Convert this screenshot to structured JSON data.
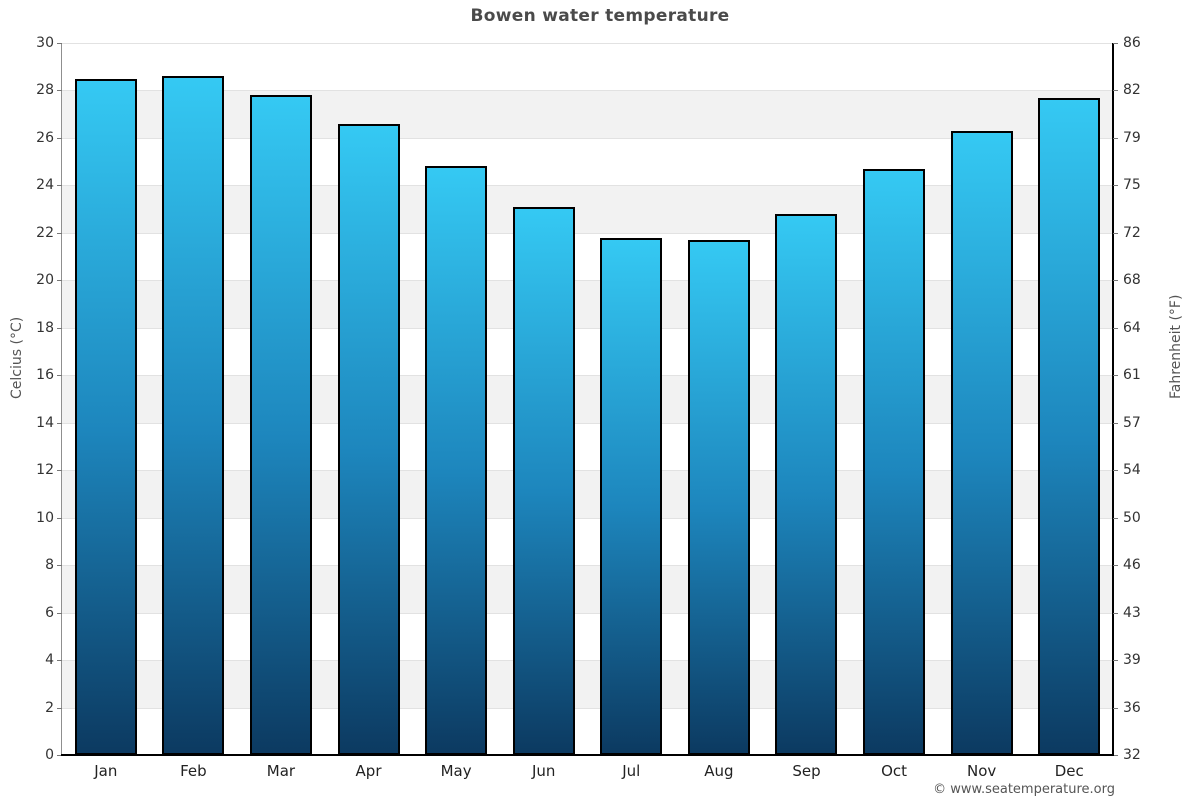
{
  "chart_data": {
    "type": "bar",
    "title": "Bowen water temperature",
    "categories": [
      "Jan",
      "Feb",
      "Mar",
      "Apr",
      "May",
      "Jun",
      "Jul",
      "Aug",
      "Sep",
      "Oct",
      "Nov",
      "Dec"
    ],
    "values": [
      28.5,
      28.6,
      27.8,
      26.6,
      24.8,
      23.1,
      21.8,
      21.7,
      22.8,
      24.7,
      26.3,
      27.7
    ],
    "ylabel_left": "Celcius (°C)",
    "ylabel_right": "Fahrenheit (°F)",
    "ylim": [
      0,
      30
    ],
    "yticks_celsius": [
      0,
      2,
      4,
      6,
      8,
      10,
      12,
      14,
      16,
      18,
      20,
      22,
      24,
      26,
      28,
      30
    ],
    "yticks_fahrenheit": [
      32,
      36,
      39,
      43,
      46,
      50,
      54,
      57,
      61,
      64,
      68,
      72,
      75,
      79,
      82,
      86
    ],
    "grid": true,
    "legend": "none",
    "colors": {
      "bar_top": "#35c9f3",
      "bar_mid": "#1d86bd",
      "bar_bottom": "#0c3a61",
      "bar_border": "#000000",
      "band_gray": "#f2f2f2",
      "gridline": "#e2e2e2",
      "title_text": "#4a4a4a",
      "tick_text": "#333333"
    }
  },
  "footer": {
    "credit": "© www.seatemperature.org"
  }
}
